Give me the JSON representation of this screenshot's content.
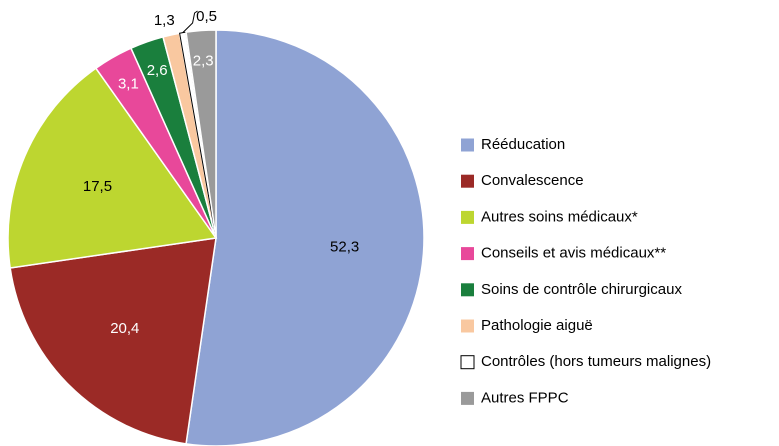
{
  "chart_data": {
    "type": "pie",
    "categories": [
      "Rééducation",
      "Convalescence",
      "Autres soins médicaux*",
      "Conseils et avis médicaux**",
      "Soins de contrôle chirurgicaux",
      "Pathologie aiguë",
      "Contrôles (hors tumeurs malignes)",
      "Autres FPPC"
    ],
    "values": [
      52.3,
      20.4,
      17.5,
      3.1,
      2.6,
      1.3,
      0.5,
      2.3
    ],
    "value_labels": [
      "52,3",
      "20,4",
      "17,5",
      "3,1",
      "2,6",
      "1,3",
      "0,5",
      "2,3"
    ],
    "colors": [
      "#8fa3d4",
      "#9b2a26",
      "#bdd630",
      "#e8489a",
      "#1a7f3d",
      "#f9c8a0",
      "#ffffff",
      "#9a9a9a"
    ]
  }
}
